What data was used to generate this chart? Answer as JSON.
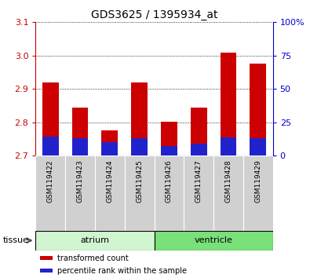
{
  "title": "GDS3625 / 1395934_at",
  "samples": [
    "GSM119422",
    "GSM119423",
    "GSM119424",
    "GSM119425",
    "GSM119426",
    "GSM119427",
    "GSM119428",
    "GSM119429"
  ],
  "red_values": [
    2.92,
    2.845,
    2.775,
    2.92,
    2.802,
    2.845,
    3.01,
    2.975
  ],
  "blue_values": [
    2.758,
    2.752,
    2.74,
    2.752,
    2.728,
    2.737,
    2.755,
    2.753
  ],
  "ymin": 2.7,
  "ymax": 3.1,
  "yticks": [
    2.7,
    2.8,
    2.9,
    3.0,
    3.1
  ],
  "right_ytick_labels": [
    "0",
    "25",
    "50",
    "75",
    "100%"
  ],
  "bar_base": 2.7,
  "bar_width": 0.55,
  "tissue_groups": [
    {
      "label": "atrium",
      "start": 0,
      "end": 4,
      "color": "#d0f5d0"
    },
    {
      "label": "ventricle",
      "start": 4,
      "end": 8,
      "color": "#7ae07a"
    }
  ],
  "tissue_label": "tissue",
  "legend_items": [
    {
      "label": "transformed count",
      "color": "#cc0000"
    },
    {
      "label": "percentile rank within the sample",
      "color": "#0000cc"
    }
  ],
  "red_color": "#cc0000",
  "blue_bar_color": "#2222cc",
  "axis_color_left": "#cc0000",
  "axis_color_right": "#0000cc",
  "tick_bg": "#d0d0d0"
}
